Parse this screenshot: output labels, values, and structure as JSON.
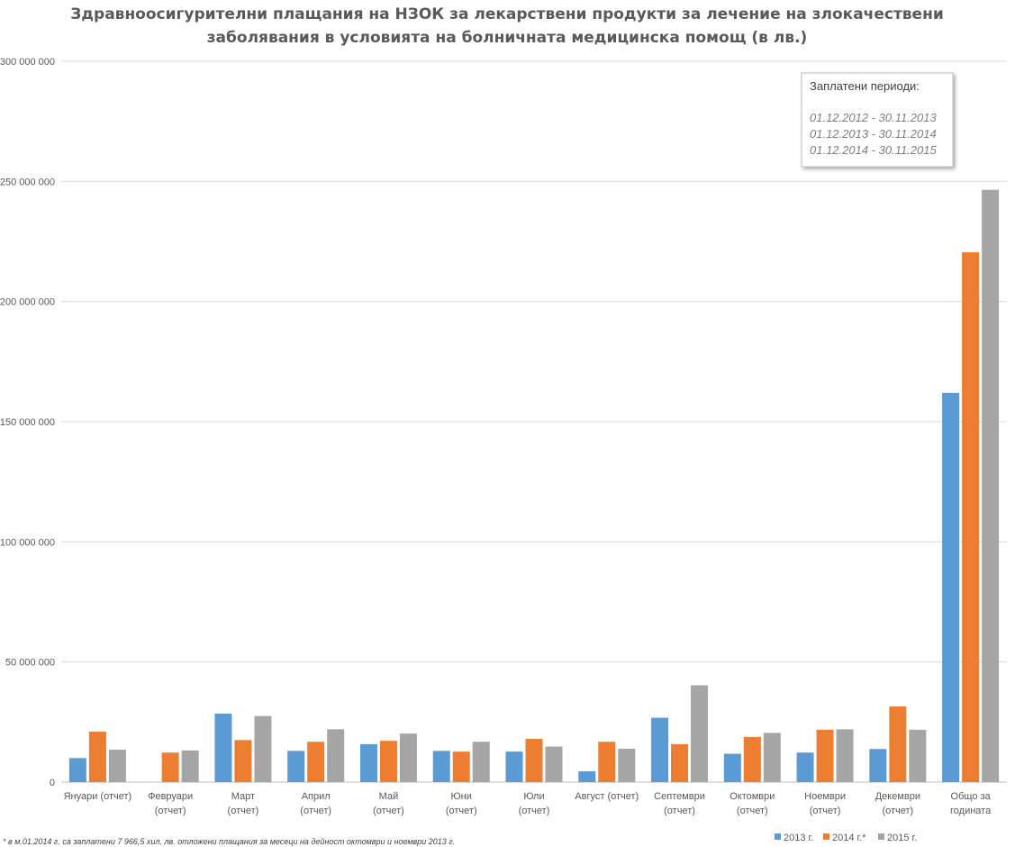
{
  "chart_data": {
    "type": "bar",
    "title_lines": [
      "Здравноосигурителни  плащания на НЗОК за лекарствени продукти за лечение на злокачествени",
      "заболявания  в условията на болничната медицинска помощ (в лв.)"
    ],
    "categories": [
      [
        "Януари (отчет)"
      ],
      [
        "Февруари",
        "(отчет)"
      ],
      [
        "Март",
        "(отчет)"
      ],
      [
        "Април",
        "(отчет)"
      ],
      [
        "Май",
        "(отчет)"
      ],
      [
        "Юни",
        "(отчет)"
      ],
      [
        "Юли",
        "(отчет)"
      ],
      [
        "Август  (отчет)"
      ],
      [
        "Септември",
        "(отчет)"
      ],
      [
        "Октомври",
        "(отчет)"
      ],
      [
        "Ноември",
        "(отчет)"
      ],
      [
        "Декември",
        "(отчет)"
      ],
      [
        "Общо за",
        "годината"
      ]
    ],
    "series": [
      {
        "name": "2013 г.",
        "color": "#5b9bd5",
        "values": [
          10000000,
          0,
          28500000,
          13000000,
          15800000,
          13000000,
          12700000,
          4500000,
          26800000,
          11800000,
          12300000,
          13800000,
          162000000
        ]
      },
      {
        "name": "2014 г.*",
        "color": "#ed7d31",
        "values": [
          21000000,
          12300000,
          17500000,
          16800000,
          17200000,
          12700000,
          18000000,
          16800000,
          15800000,
          18800000,
          21800000,
          31500000,
          220500000
        ]
      },
      {
        "name": "2015 г.",
        "color": "#a5a5a5",
        "values": [
          13500000,
          13200000,
          27500000,
          22000000,
          20200000,
          16800000,
          14800000,
          13900000,
          40300000,
          20500000,
          22000000,
          21800000,
          246500000
        ]
      }
    ],
    "ylim": [
      0,
      300000000
    ],
    "yticks": [
      0,
      50000000,
      100000000,
      150000000,
      200000000,
      250000000,
      300000000
    ],
    "ytick_labels": [
      "0",
      "50 000 000",
      "100 000 000",
      "150 000 000",
      "200 000 000",
      "250 000 000",
      "300 000 000"
    ],
    "grid": true,
    "legend_position": "bottom-right",
    "annotation": {
      "title": "Заплатени периоди:",
      "lines": [
        "01.12.2012  - 30.11.2013",
        "01.12.2013  - 30.11.2014",
        "01.12.2014  - 30.11.2015"
      ]
    },
    "footnote": "* в м.01.2014 г. са заплатени 7 966,5 хил. лв. отложени плащания за месеци на дейност октомври и ноември 2013 г."
  }
}
